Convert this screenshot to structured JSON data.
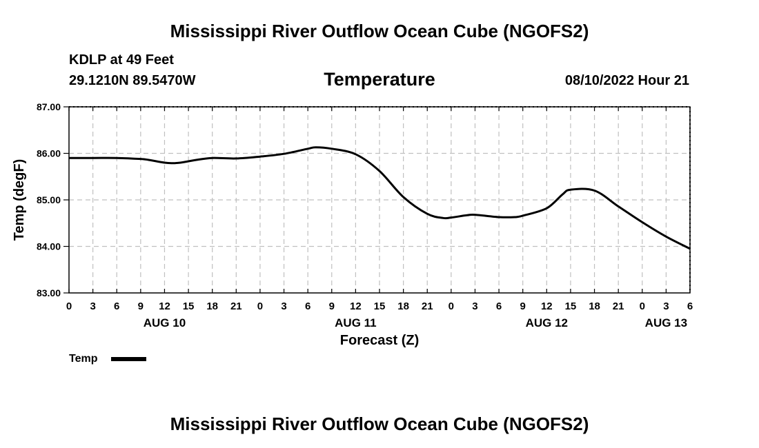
{
  "header": {
    "title": "Mississippi River Outflow Ocean Cube (NGOFS2)",
    "station": "KDLP at 49 Feet",
    "coords": "29.1210N  89.5470W",
    "subtitle": "Temperature",
    "datetime": "08/10/2022 Hour 21"
  },
  "footer": {
    "title": "Mississippi River Outflow Ocean Cube (NGOFS2)"
  },
  "colors": {
    "line": "#000000",
    "grid": "#bfbfbf"
  },
  "chart_data": {
    "type": "line",
    "title": "Temperature",
    "xlabel": "Forecast (Z)",
    "ylabel": "Temp (degF)",
    "ylim": [
      83.0,
      87.0
    ],
    "yticks": [
      "83.00",
      "84.00",
      "85.00",
      "86.00",
      "87.00"
    ],
    "yticks_values": [
      83,
      84,
      85,
      86,
      87
    ],
    "xlim_hours": [
      0,
      78
    ],
    "xtick_labels": [
      "0",
      "3",
      "6",
      "9",
      "12",
      "15",
      "18",
      "21",
      "0",
      "3",
      "6",
      "9",
      "12",
      "15",
      "18",
      "21",
      "0",
      "3",
      "6",
      "9",
      "12",
      "15",
      "18",
      "21",
      "0",
      "3",
      "6"
    ],
    "day_labels": [
      {
        "label": "AUG 10",
        "hour": 12
      },
      {
        "label": "AUG 11",
        "hour": 36
      },
      {
        "label": "AUG 12",
        "hour": 60
      },
      {
        "label": "AUG 13",
        "hour": 75
      }
    ],
    "grid": true,
    "legend": {
      "label": "Temp",
      "position": "bottom-left"
    },
    "series": [
      {
        "name": "Temp",
        "x": [
          0,
          3,
          6,
          9,
          10,
          12,
          13,
          14,
          16,
          18,
          21,
          24,
          27,
          30,
          31,
          33,
          36,
          39,
          42,
          45,
          47,
          48,
          50,
          51,
          54,
          56,
          57,
          60,
          62,
          63,
          66,
          69,
          72,
          75,
          78
        ],
        "values": [
          85.9,
          85.9,
          85.9,
          85.88,
          85.86,
          85.8,
          85.79,
          85.8,
          85.86,
          85.9,
          85.89,
          85.93,
          85.99,
          86.1,
          86.13,
          86.1,
          85.98,
          85.62,
          85.06,
          84.7,
          84.61,
          84.62,
          84.67,
          84.68,
          84.63,
          84.63,
          84.66,
          84.82,
          85.12,
          85.22,
          85.2,
          84.86,
          84.52,
          84.21,
          83.95
        ]
      }
    ]
  }
}
